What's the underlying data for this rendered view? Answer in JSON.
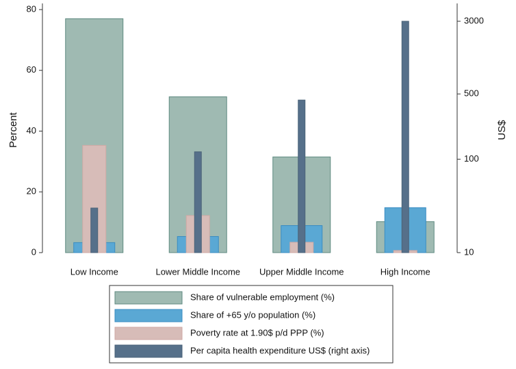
{
  "chart_data": {
    "type": "bar",
    "categories": [
      "Low Income",
      "Lower Middle Income",
      "Upper Middle Income",
      "High Income"
    ],
    "y_label": "Percent",
    "y2_label": "US$",
    "ylim": [
      0,
      80
    ],
    "yticks": [
      0,
      20,
      40,
      60,
      80
    ],
    "y2lim": [
      10,
      4000
    ],
    "y2ticks": [
      10,
      100,
      500,
      3000
    ],
    "y2scale": "log",
    "legend": "bottom",
    "series": [
      {
        "name": "Share of vulnerable employment (%)",
        "color": "#9fbab2",
        "values": [
          77,
          51.3,
          31.5,
          10.2
        ]
      },
      {
        "name": "Share of +65 y/o population (%)",
        "color": "#5aa8d4",
        "values": [
          3.3,
          5.3,
          8.9,
          14.8
        ]
      },
      {
        "name": "Poverty rate at 1.90$ p/d PPP (%)",
        "color": "#d7bcb8",
        "values": [
          35.3,
          12.2,
          3.4,
          0.7
        ]
      },
      {
        "name": "Per capita health expenditure US$ (right axis)",
        "color": "#56708a",
        "axis": "y2",
        "values": [
          30,
          120,
          430,
          3000
        ]
      }
    ]
  }
}
